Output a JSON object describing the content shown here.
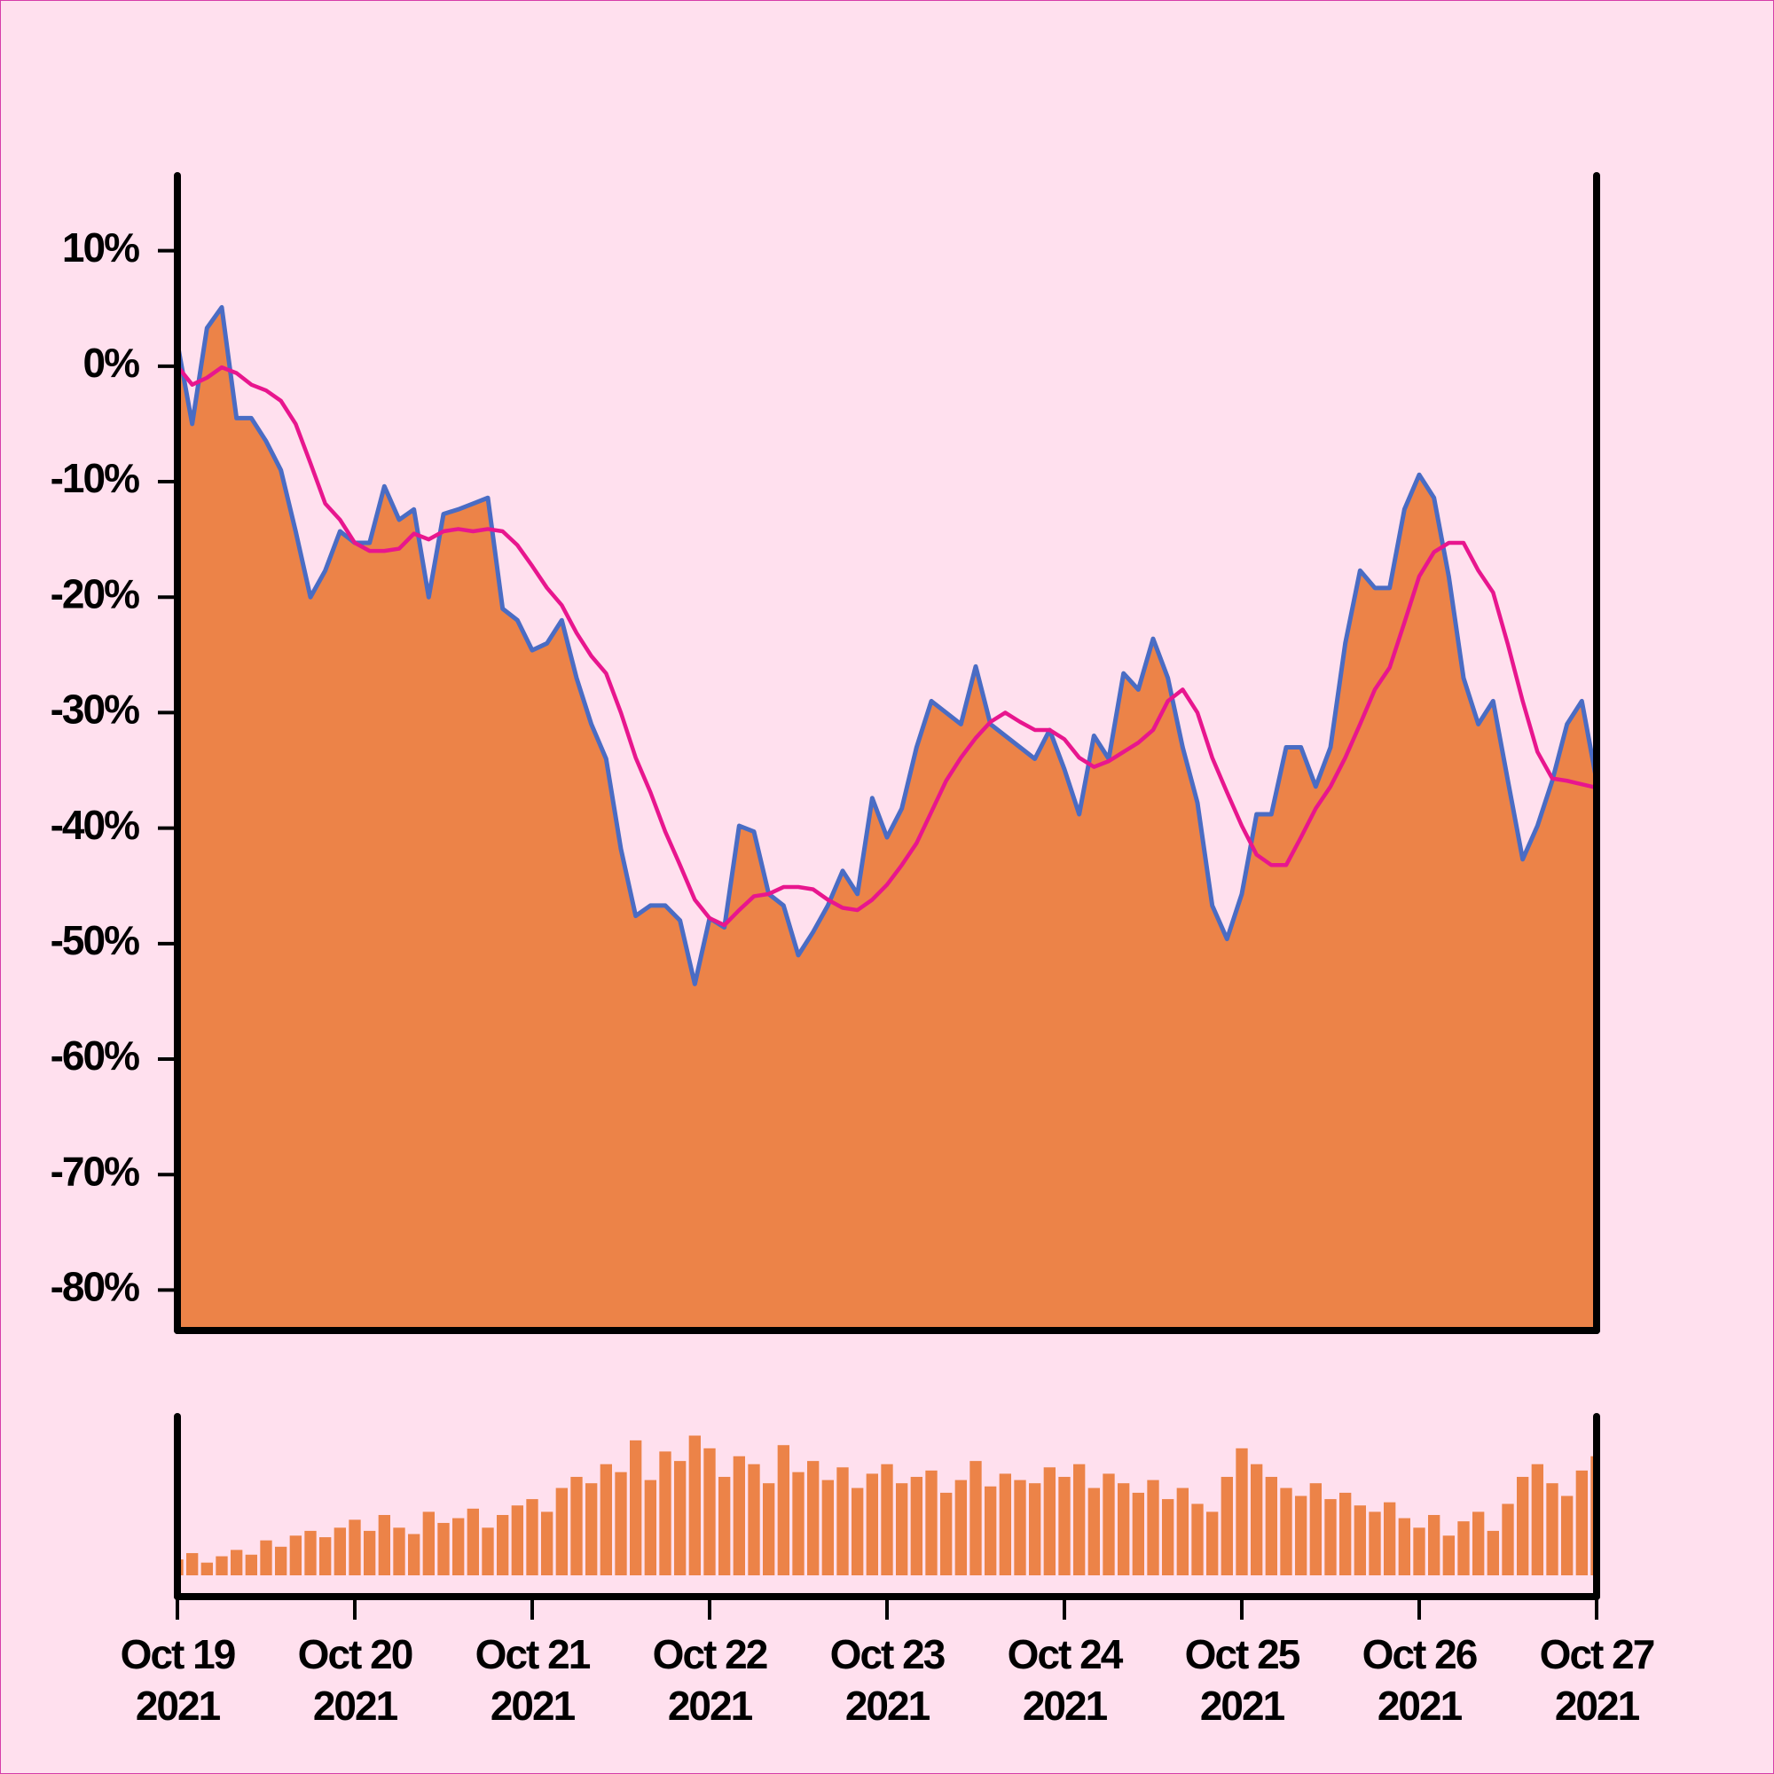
{
  "chart_data": [
    {
      "type": "area",
      "xlim": [
        "2021-10-19",
        "2021-10-27"
      ],
      "ylim": [
        -83.5,
        16.5
      ],
      "yticks": [
        {
          "value": 10,
          "label": "10%"
        },
        {
          "value": 0,
          "label": "0%"
        },
        {
          "value": -10,
          "label": "-10%"
        },
        {
          "value": -20,
          "label": "-20%"
        },
        {
          "value": -30,
          "label": "-30%"
        },
        {
          "value": -40,
          "label": "-40%"
        },
        {
          "value": -50,
          "label": "-50%"
        },
        {
          "value": -60,
          "label": "-60%"
        },
        {
          "value": -70,
          "label": "-70%"
        },
        {
          "value": -80,
          "label": "-80%"
        }
      ],
      "series": [
        {
          "color": "#ec8348",
          "line_color": "#4a6cc4",
          "values": [
            2,
            -5,
            3.3,
            5.1,
            -4.5,
            -4.5,
            -6.5,
            -9,
            -14.3,
            -20,
            -17.7,
            -14.3,
            -15.3,
            -15.3,
            -10.4,
            -13.3,
            -12.4,
            -20,
            -12.8,
            -12.4,
            -11.9,
            -11.4,
            -21,
            -22,
            -24.6,
            -24,
            -22,
            -27,
            -31,
            -34,
            -41.8,
            -47.6,
            -46.7,
            -46.7,
            -48,
            -53.5,
            -47.8,
            -48.6,
            -39.8,
            -40.3,
            -45.7,
            -46.7,
            -51,
            -49,
            -46.7,
            -43.7,
            -45.7,
            -37.4,
            -40.8,
            -38.3,
            -33,
            -29,
            -30,
            -31,
            -26,
            -31,
            -32,
            -33,
            -34,
            -31.5,
            -34.9,
            -38.8,
            -32,
            -34,
            -26.6,
            -28,
            -23.6,
            -27,
            -33,
            -37.8,
            -46.7,
            -49.6,
            -45.7,
            -38.8,
            -38.8,
            -33,
            -33,
            -36.4,
            -33,
            -24,
            -17.7,
            -19.2,
            -19.2,
            -12.4,
            -9.4,
            -11.4,
            -18.2,
            -27,
            -31,
            -29,
            -35.9,
            -42.7,
            -39.8,
            -35.9,
            -31,
            -29,
            -35.9
          ]
        },
        {
          "type": "line",
          "color": "#e8168e",
          "values": [
            0,
            -1.6,
            -1,
            -0.1,
            -0.6,
            -1.6,
            -2.1,
            -3,
            -5,
            -8.4,
            -11.9,
            -13.3,
            -15.3,
            -16,
            -16,
            -15.8,
            -14.5,
            -15,
            -14.3,
            -14.1,
            -14.3,
            -14.1,
            -14.3,
            -15.5,
            -17.3,
            -19.2,
            -20.7,
            -23.1,
            -25.1,
            -26.6,
            -30,
            -33.9,
            -36.9,
            -40.3,
            -43.2,
            -46.2,
            -47.8,
            -48.4,
            -47.1,
            -45.9,
            -45.7,
            -45.1,
            -45.1,
            -45.3,
            -46.2,
            -46.9,
            -47.1,
            -46.2,
            -44.9,
            -43.2,
            -41.3,
            -38.6,
            -35.9,
            -33.9,
            -32.2,
            -30.8,
            -30,
            -30.8,
            -31.5,
            -31.5,
            -32.3,
            -33.9,
            -34.7,
            -34.2,
            -33.4,
            -32.6,
            -31.5,
            -29,
            -28,
            -30,
            -33.9,
            -36.9,
            -39.8,
            -42.3,
            -43.2,
            -43.2,
            -40.8,
            -38.3,
            -36.4,
            -33.9,
            -31,
            -28,
            -26.1,
            -22.2,
            -18.2,
            -16.1,
            -15.3,
            -15.3,
            -17.7,
            -19.6,
            -24.1,
            -29,
            -33.4,
            -35.7,
            -35.9,
            -36.2,
            -36.5
          ]
        }
      ]
    },
    {
      "type": "bar",
      "xlim": [
        "2021-10-19",
        "2021-10-27"
      ],
      "xticks": [
        {
          "value": "2021-10-19",
          "label": "Oct 19 2021"
        },
        {
          "value": "2021-10-20",
          "label": "Oct 20 2021"
        },
        {
          "value": "2021-10-21",
          "label": "Oct 21 2021"
        },
        {
          "value": "2021-10-22",
          "label": "Oct 22 2021"
        },
        {
          "value": "2021-10-23",
          "label": "Oct 23 2021"
        },
        {
          "value": "2021-10-24",
          "label": "Oct 24 2021"
        },
        {
          "value": "2021-10-25",
          "label": "Oct 25 2021"
        },
        {
          "value": "2021-10-26",
          "label": "Oct 26 2021"
        },
        {
          "value": "2021-10-27",
          "label": "Oct 27 2021"
        }
      ],
      "ylim": [
        -13.4,
        100
      ],
      "series": [
        {
          "color": "#ec8348",
          "values": [
            10,
            14,
            8,
            12,
            16,
            13,
            22,
            18,
            25,
            28,
            24,
            30,
            35,
            28,
            38,
            30,
            26,
            40,
            33,
            36,
            42,
            30,
            38,
            44,
            48,
            40,
            55,
            62,
            58,
            70,
            65,
            85,
            60,
            78,
            72,
            88,
            80,
            62,
            75,
            70,
            58,
            82,
            65,
            72,
            60,
            68,
            55,
            64,
            70,
            58,
            62,
            66,
            52,
            60,
            72,
            56,
            64,
            60,
            58,
            68,
            62,
            70,
            55,
            64,
            58,
            52,
            60,
            48,
            55,
            45,
            40,
            62,
            80,
            70,
            62,
            55,
            50,
            58,
            48,
            52,
            44,
            40,
            46,
            36,
            30,
            38,
            25,
            34,
            40,
            28,
            45,
            62,
            70,
            58,
            50,
            66,
            75
          ]
        }
      ]
    }
  ]
}
